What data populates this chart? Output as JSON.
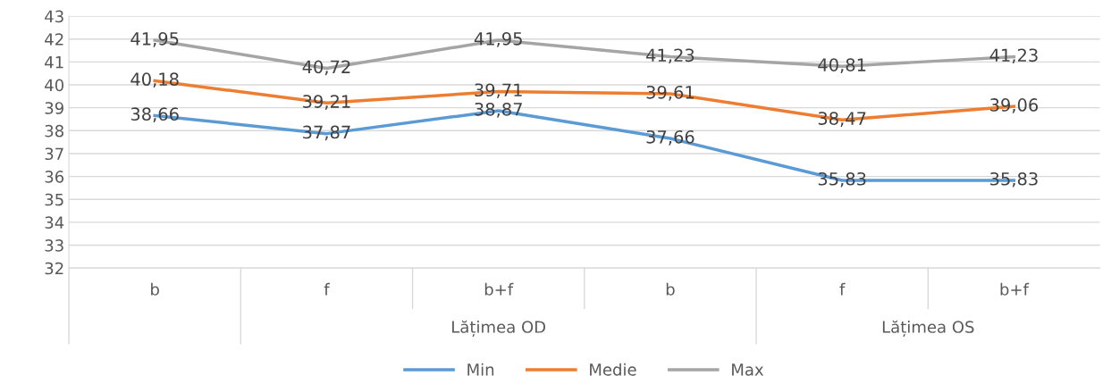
{
  "chart_data": {
    "type": "line",
    "categories": [
      "b",
      "f",
      "b+f",
      "b",
      "f",
      "b+f"
    ],
    "series": [
      {
        "name": "Min",
        "color": "#5b9bd5",
        "values": [
          38.66,
          37.87,
          38.87,
          37.66,
          35.83,
          35.83
        ],
        "value_labels": [
          "38,66",
          "37,87",
          "38,87",
          "37,66",
          "35,83",
          "35,83"
        ]
      },
      {
        "name": "Medie",
        "color": "#ed7d31",
        "values": [
          40.18,
          39.21,
          39.71,
          39.61,
          38.47,
          39.06
        ],
        "value_labels": [
          "40,18",
          "39,21",
          "39,71",
          "39,61",
          "38,47",
          "39,06"
        ]
      },
      {
        "name": "Max",
        "color": "#a5a5a5",
        "values": [
          41.95,
          40.72,
          41.95,
          41.23,
          40.81,
          41.23
        ],
        "value_labels": [
          "41,95",
          "40,72",
          "41,95",
          "41,23",
          "40,81",
          "41,23"
        ]
      }
    ],
    "annotations": [
      "Lățimea OD",
      "Lățimea OS"
    ],
    "ylim": [
      32,
      43
    ],
    "yticks": [
      32,
      33,
      34,
      35,
      36,
      37,
      38,
      39,
      40,
      41,
      42,
      43
    ],
    "grid": "y",
    "legend": "bottom",
    "marker": "none",
    "line_style": "solid"
  }
}
